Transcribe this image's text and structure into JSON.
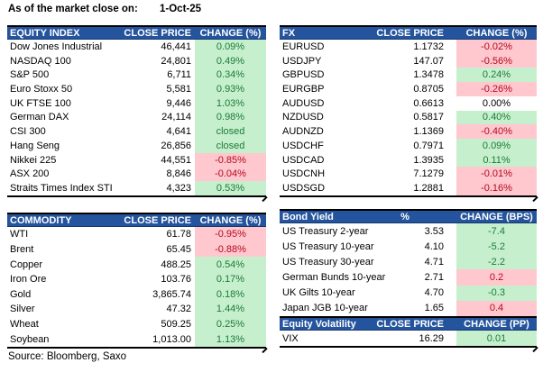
{
  "page": {
    "as_of_label": "As of the market close on:",
    "as_of_date": "1-Oct-25",
    "source": "Source: Bloomberg, Saxo"
  },
  "colors": {
    "header_bg": "#24549E",
    "header_text": "#FFFFFF",
    "positive_bg": "#C6EFCE",
    "positive_text": "#1E7B35",
    "negative_bg": "#FFC7CE",
    "negative_text": "#B40A1E"
  },
  "tables": [
    {
      "id": "equity",
      "title": "EQUITY INDEX",
      "col_close": "CLOSE PRICE",
      "col_change": "CHANGE (%)",
      "rows": [
        {
          "label": "Dow Jones Industrial",
          "close": "46,441",
          "change": "0.09%",
          "tone": "up"
        },
        {
          "label": "NASDAQ 100",
          "close": "24,801",
          "change": "0.49%",
          "tone": "up"
        },
        {
          "label": "S&P 500",
          "close": "6,711",
          "change": "0.34%",
          "tone": "up"
        },
        {
          "label": "Euro Stoxx 50",
          "close": "5,581",
          "change": "0.93%",
          "tone": "up"
        },
        {
          "label": "UK FTSE 100",
          "close": "9,446",
          "change": "1.03%",
          "tone": "up"
        },
        {
          "label": "German DAX",
          "close": "24,114",
          "change": "0.98%",
          "tone": "up"
        },
        {
          "label": "CSI 300",
          "close": "4,641",
          "change": "closed",
          "tone": "up"
        },
        {
          "label": "Hang Seng",
          "close": "26,856",
          "change": "closed",
          "tone": "up"
        },
        {
          "label": "Nikkei 225",
          "close": "44,551",
          "change": "-0.85%",
          "tone": "down"
        },
        {
          "label": "ASX 200",
          "close": "8,846",
          "change": "-0.04%",
          "tone": "down"
        },
        {
          "label": "Straits Times Index STI",
          "close": "4,323",
          "change": "0.53%",
          "tone": "up"
        }
      ]
    },
    {
      "id": "fx",
      "title": "FX",
      "col_close": "CLOSE PRICE",
      "col_change": "CHANGE (%)",
      "rows": [
        {
          "label": "EURUSD",
          "close": "1.1732",
          "change": "-0.02%",
          "tone": "down"
        },
        {
          "label": "USDJPY",
          "close": "147.07",
          "change": "-0.56%",
          "tone": "down"
        },
        {
          "label": "GBPUSD",
          "close": "1.3478",
          "change": "0.24%",
          "tone": "up"
        },
        {
          "label": "EURGBP",
          "close": "0.8705",
          "change": "-0.26%",
          "tone": "down"
        },
        {
          "label": "AUDUSD",
          "close": "0.6613",
          "change": "0.00%",
          "tone": "flat"
        },
        {
          "label": "NZDUSD",
          "close": "0.5817",
          "change": "0.40%",
          "tone": "up"
        },
        {
          "label": "AUDNZD",
          "close": "1.1369",
          "change": "-0.40%",
          "tone": "down"
        },
        {
          "label": "USDCHF",
          "close": "0.7971",
          "change": "0.09%",
          "tone": "up"
        },
        {
          "label": "USDCAD",
          "close": "1.3935",
          "change": "0.11%",
          "tone": "up"
        },
        {
          "label": "USDCNH",
          "close": "7.1279",
          "change": "-0.01%",
          "tone": "down"
        },
        {
          "label": "USDSGD",
          "close": "1.2881",
          "change": "-0.16%",
          "tone": "down"
        }
      ]
    },
    {
      "id": "commodity",
      "title": "COMMODITY",
      "col_close": "CLOSE PRICE",
      "col_change": "CHANGE (%)",
      "rows": [
        {
          "label": "WTI",
          "close": "61.78",
          "change": "-0.95%",
          "tone": "down"
        },
        {
          "label": "Brent",
          "close": "65.45",
          "change": "-0.88%",
          "tone": "down"
        },
        {
          "label": "Copper",
          "close": "488.25",
          "change": "0.54%",
          "tone": "up"
        },
        {
          "label": "Iron Ore",
          "close": "103.76",
          "change": "0.17%",
          "tone": "up"
        },
        {
          "label": "Gold",
          "close": "3,865.74",
          "change": "0.18%",
          "tone": "up"
        },
        {
          "label": "Silver",
          "close": "47.32",
          "change": "1.44%",
          "tone": "up"
        },
        {
          "label": "Wheat",
          "close": "509.25",
          "change": "0.25%",
          "tone": "up"
        },
        {
          "label": "Soybean",
          "close": "1,013.00",
          "change": "1.13%",
          "tone": "up"
        }
      ]
    },
    {
      "id": "bond",
      "title": "Bond Yield",
      "col_close": "%",
      "col_change": "CHANGE (BPS)",
      "rows": [
        {
          "label": "US Treasury 2-year",
          "close": "3.53",
          "change": "-7.4",
          "tone": "up"
        },
        {
          "label": "US Treasury 10-year",
          "close": "4.10",
          "change": "-5.2",
          "tone": "up"
        },
        {
          "label": "US Treasury 30-year",
          "close": "4.71",
          "change": "-2.2",
          "tone": "up"
        },
        {
          "label": "German Bunds 10-year",
          "close": "2.71",
          "change": "0.2",
          "tone": "down"
        },
        {
          "label": "UK Gilts 10-year",
          "close": "4.70",
          "change": "-0.3",
          "tone": "up"
        },
        {
          "label": "Japan JGB 10-year",
          "close": "1.65",
          "change": "0.4",
          "tone": "down"
        }
      ]
    },
    {
      "id": "eqvol",
      "title": "Equity Volatility",
      "col_close": "CLOSE PRICE",
      "col_change": "CHANGE (PP)",
      "rows": [
        {
          "label": "VIX",
          "close": "16.29",
          "change": "0.01",
          "tone": "up"
        }
      ]
    }
  ]
}
